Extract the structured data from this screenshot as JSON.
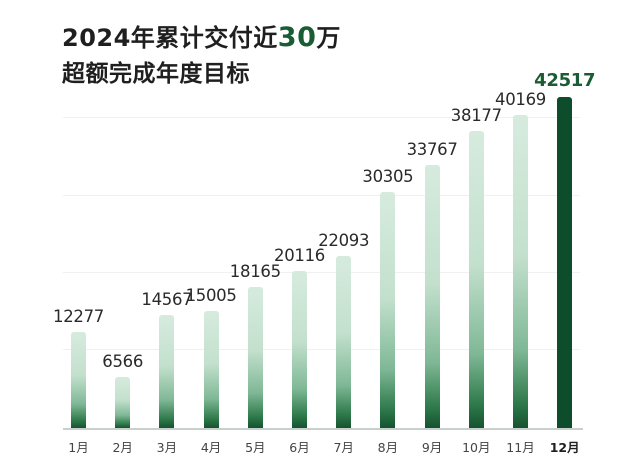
{
  "title": {
    "line1_prefix": "2024年累计交付近",
    "line1_highlight": "30",
    "line1_suffix": "万",
    "line2": "超额完成年度目标"
  },
  "colors": {
    "accent": "#1a5c33",
    "bar_dark": "#0e4d2c",
    "bar_light": "#d6ebde"
  },
  "chart_data": {
    "type": "bar",
    "title": "2024年累计交付近30万 超额完成年度目标",
    "xlabel": "",
    "ylabel": "",
    "categories": [
      "1月",
      "2月",
      "3月",
      "4月",
      "5月",
      "6月",
      "7月",
      "8月",
      "9月",
      "10月",
      "11月",
      "12月"
    ],
    "values": [
      12277,
      6566,
      14567,
      15005,
      18165,
      20116,
      22093,
      30305,
      33767,
      38177,
      40169,
      42517
    ],
    "labels": [
      "12277",
      "6566",
      "14567",
      "15005",
      "18165",
      "20116",
      "22093",
      "30305",
      "33767",
      "38177",
      "40169",
      "42517"
    ],
    "highlight_index": 11,
    "grid": true,
    "legend": "none",
    "ylim": [
      0,
      45000
    ]
  }
}
